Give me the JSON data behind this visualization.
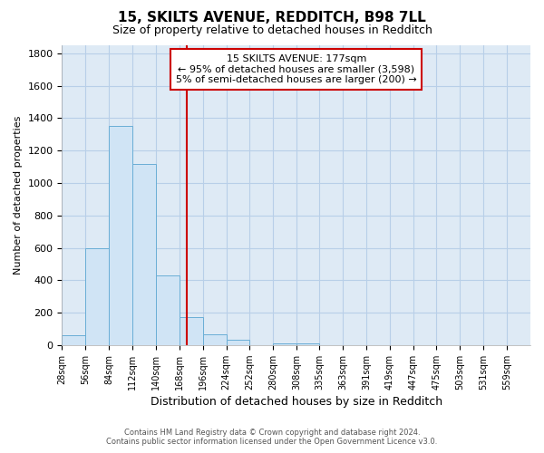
{
  "title1": "15, SKILTS AVENUE, REDDITCH, B98 7LL",
  "title2": "Size of property relative to detached houses in Redditch",
  "xlabel": "Distribution of detached houses by size in Redditch",
  "ylabel": "Number of detached properties",
  "bin_edges": [
    28,
    56,
    84,
    112,
    140,
    168,
    196,
    224,
    252,
    280,
    308,
    335,
    363,
    391,
    419,
    447,
    475,
    503,
    531,
    559,
    587
  ],
  "bar_heights": [
    60,
    600,
    1350,
    1120,
    430,
    170,
    65,
    35,
    0,
    10,
    10,
    0,
    0,
    0,
    0,
    0,
    0,
    0,
    0,
    0
  ],
  "bar_facecolor": "#d0e4f5",
  "bar_edgecolor": "#6aaed6",
  "grid_color": "#b8cfe8",
  "bg_color": "#deeaf5",
  "vline_x": 177,
  "vline_color": "#cc0000",
  "annotation_text_line1": "15 SKILTS AVENUE: 177sqm",
  "annotation_text_line2": "← 95% of detached houses are smaller (3,598)",
  "annotation_text_line3": "5% of semi-detached houses are larger (200) →",
  "box_edgecolor": "#cc0000",
  "ylim": [
    0,
    1850
  ],
  "yticks": [
    0,
    200,
    400,
    600,
    800,
    1000,
    1200,
    1400,
    1600,
    1800
  ],
  "footer1": "Contains HM Land Registry data © Crown copyright and database right 2024.",
  "footer2": "Contains public sector information licensed under the Open Government Licence v3.0."
}
